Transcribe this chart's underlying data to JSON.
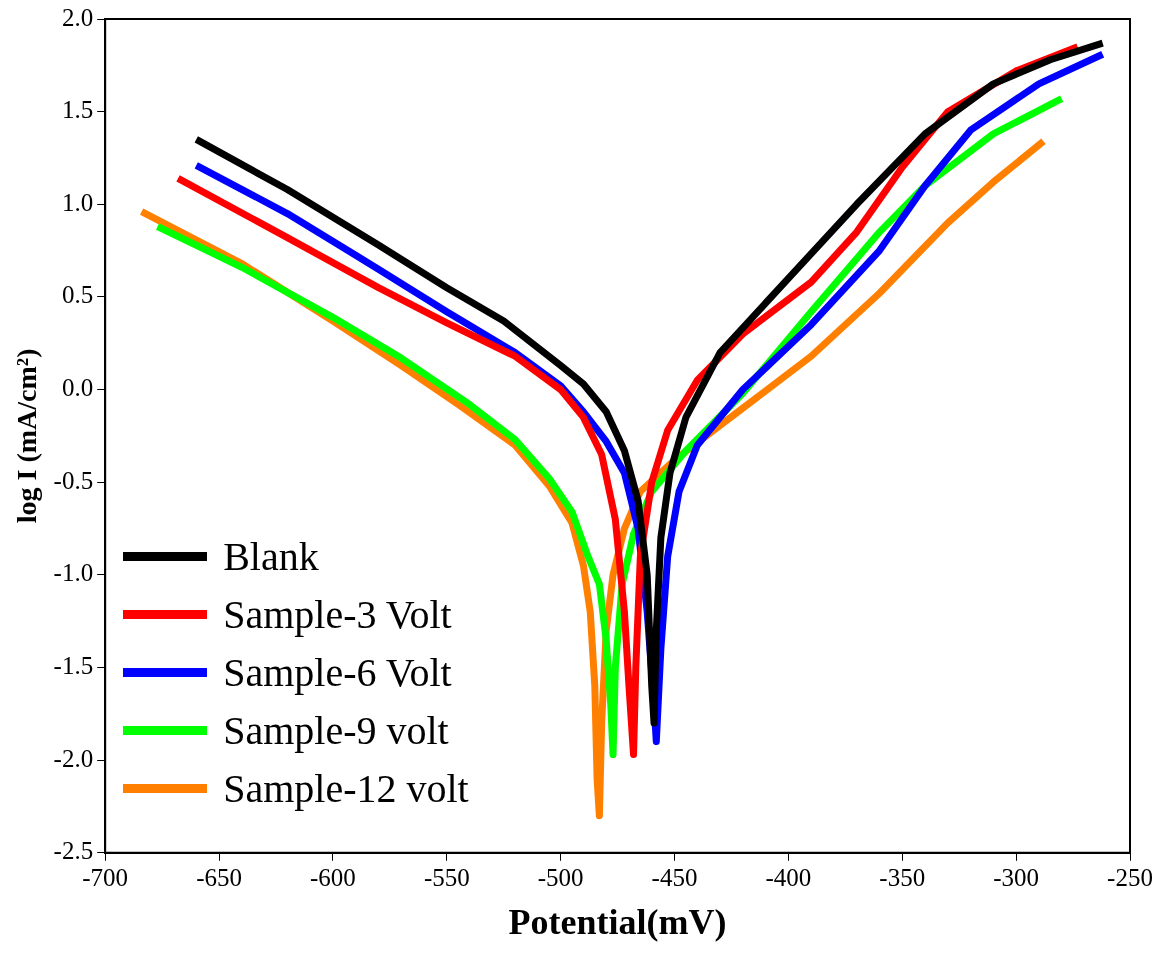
{
  "chart_data": {
    "type": "line",
    "xlabel": "Potential(mV)",
    "ylabel": "log I (mA/cm²)",
    "xlim": [
      -700,
      -250
    ],
    "xticks": [
      -700,
      -650,
      -600,
      -550,
      -500,
      -450,
      -400,
      -350,
      -300,
      -250
    ],
    "ylim": [
      -2.5,
      2.0
    ],
    "yticks": [
      {
        "value": -2.5,
        "label": "-2.5"
      },
      {
        "value": -2.0,
        "label": "-2.0"
      },
      {
        "value": -1.5,
        "label": "-1.5"
      },
      {
        "value": -1.0,
        "label": "-1.0"
      },
      {
        "value": -0.5,
        "label": "-0.5"
      },
      {
        "value": 0,
        "label": "0.0"
      },
      {
        "value": 0.5,
        "label": "0.5"
      },
      {
        "value": 1.0,
        "label": "1.0"
      },
      {
        "value": 1.5,
        "label": "1.5"
      },
      {
        "value": 2.0,
        "label": "2.0"
      }
    ],
    "grid": false,
    "legend": "bottom left",
    "marker": "none",
    "line_style": "solid",
    "series": [
      {
        "name": "Blank",
        "color": "#000000",
        "x": [
          -660,
          -620,
          -580,
          -550,
          -525,
          -500,
          -490,
          -480,
          -472,
          -466,
          -462,
          -460,
          -459,
          -458,
          -456,
          -452,
          -445,
          -430,
          -400,
          -370,
          -340,
          -310,
          -285,
          -262
        ],
        "values": [
          1.35,
          1.08,
          0.78,
          0.55,
          0.37,
          0.13,
          0.03,
          -0.12,
          -0.33,
          -0.6,
          -1.0,
          -1.6,
          -1.8,
          -1.3,
          -0.8,
          -0.45,
          -0.15,
          0.2,
          0.6,
          1.0,
          1.38,
          1.65,
          1.78,
          1.87
        ]
      },
      {
        "name": "Sample-3 Volt",
        "color": "#ff0000",
        "x": [
          -668,
          -620,
          -580,
          -550,
          -520,
          -500,
          -490,
          -482,
          -476,
          -472,
          -470,
          -468,
          -467,
          -465,
          -460,
          -453,
          -440,
          -420,
          -390,
          -370,
          -350,
          -330,
          -300,
          -273
        ],
        "values": [
          1.14,
          0.82,
          0.55,
          0.36,
          0.18,
          0.0,
          -0.15,
          -0.35,
          -0.7,
          -1.2,
          -1.6,
          -1.97,
          -1.5,
          -0.9,
          -0.5,
          -0.22,
          0.05,
          0.3,
          0.58,
          0.85,
          1.2,
          1.5,
          1.72,
          1.85
        ]
      },
      {
        "name": "Sample-6 Volt",
        "color": "#0000ff",
        "x": [
          -660,
          -620,
          -580,
          -550,
          -520,
          -500,
          -490,
          -480,
          -472,
          -466,
          -462,
          -459,
          -458,
          -456,
          -453,
          -448,
          -440,
          -420,
          -390,
          -360,
          -340,
          -320,
          -290,
          -262
        ],
        "values": [
          1.21,
          0.95,
          0.65,
          0.42,
          0.2,
          0.02,
          -0.12,
          -0.28,
          -0.45,
          -0.75,
          -1.2,
          -1.7,
          -1.9,
          -1.4,
          -0.9,
          -0.55,
          -0.3,
          0.0,
          0.35,
          0.75,
          1.1,
          1.4,
          1.65,
          1.81
        ]
      },
      {
        "name": "Sample-9 volt",
        "color": "#00ff00",
        "x": [
          -677,
          -640,
          -600,
          -570,
          -540,
          -520,
          -505,
          -495,
          -488,
          -483,
          -480,
          -478,
          -477,
          -476,
          -473,
          -468,
          -460,
          -445,
          -420,
          -390,
          -360,
          -340,
          -310,
          -280
        ],
        "values": [
          0.88,
          0.66,
          0.39,
          0.17,
          -0.08,
          -0.27,
          -0.48,
          -0.66,
          -0.9,
          -1.05,
          -1.35,
          -1.7,
          -1.97,
          -1.5,
          -1.05,
          -0.78,
          -0.55,
          -0.33,
          -0.02,
          0.42,
          0.85,
          1.1,
          1.38,
          1.57
        ]
      },
      {
        "name": "Sample-12 volt",
        "color": "#ff8000",
        "x": [
          -684,
          -640,
          -600,
          -570,
          -545,
          -520,
          -505,
          -495,
          -490,
          -487,
          -485,
          -484,
          -483,
          -482,
          -480,
          -477,
          -472,
          -465,
          -450,
          -420,
          -390,
          -360,
          -330,
          -310,
          -288
        ],
        "values": [
          0.96,
          0.68,
          0.37,
          0.13,
          -0.08,
          -0.3,
          -0.52,
          -0.72,
          -0.95,
          -1.2,
          -1.6,
          -2.1,
          -2.3,
          -1.8,
          -1.3,
          -1.0,
          -0.75,
          -0.55,
          -0.38,
          -0.1,
          0.18,
          0.52,
          0.9,
          1.12,
          1.34
        ]
      }
    ]
  }
}
